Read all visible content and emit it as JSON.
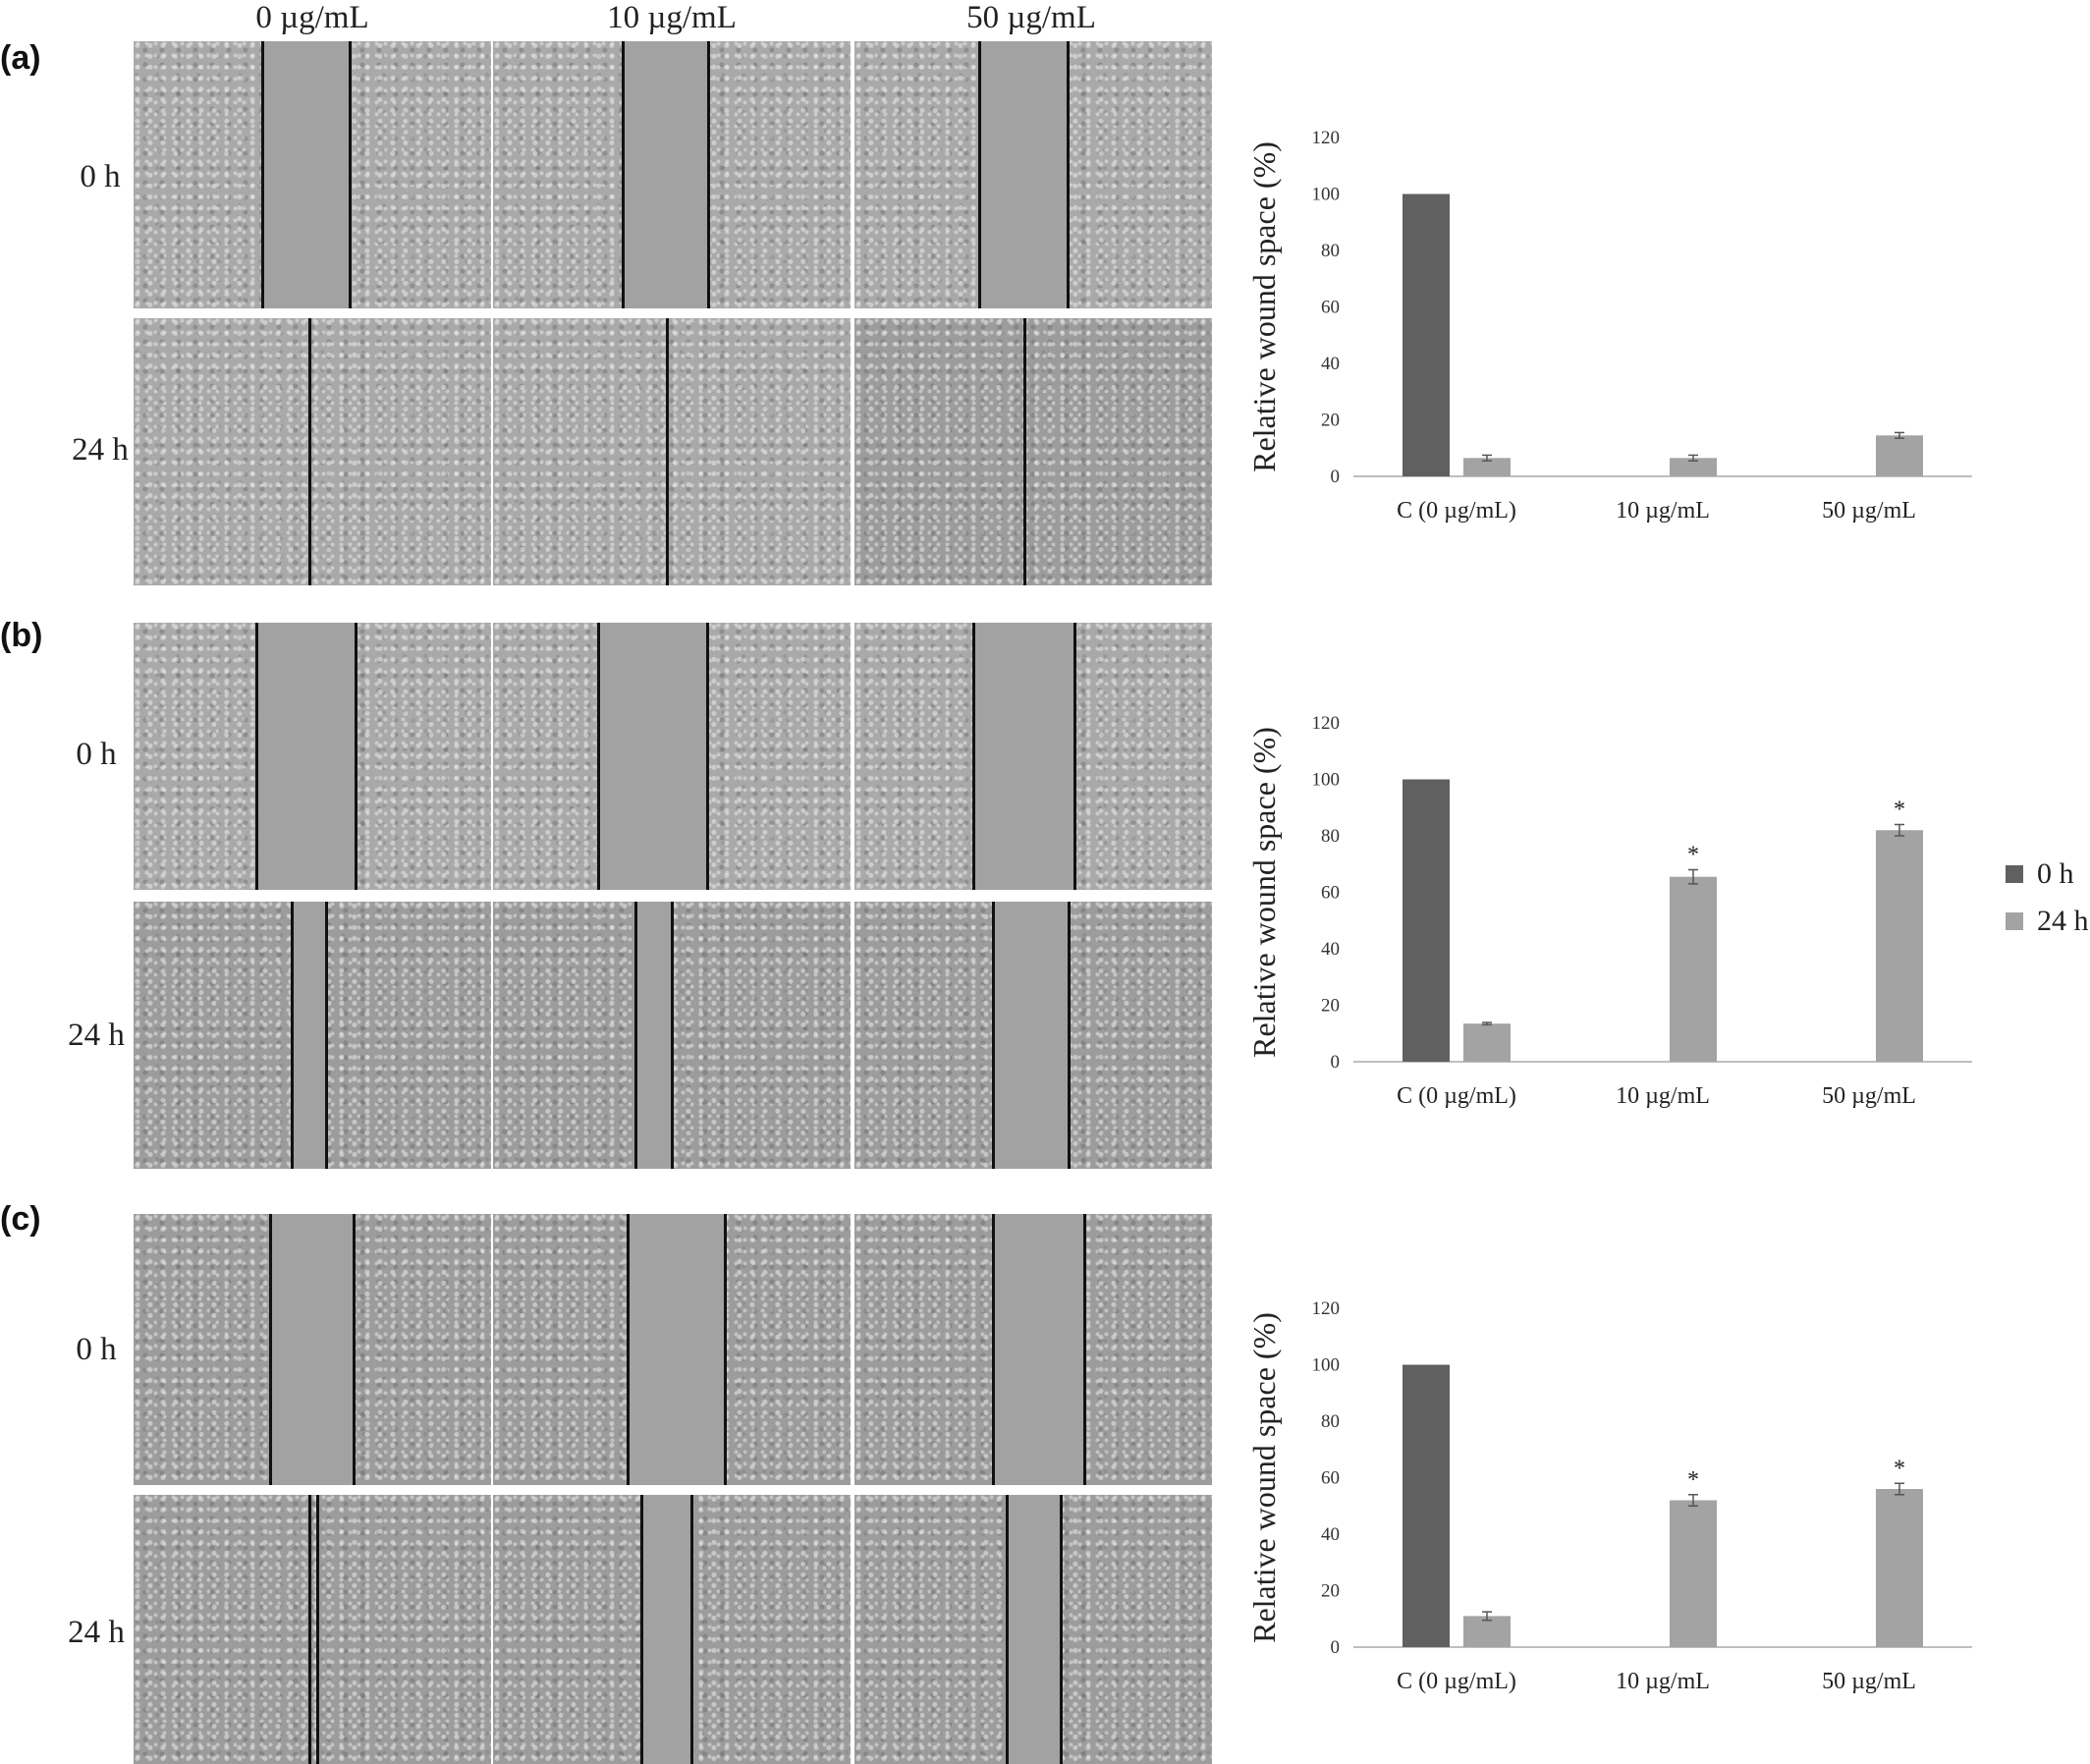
{
  "panels": [
    {
      "label": "(a)"
    },
    {
      "label": "(b)"
    },
    {
      "label": "(c)"
    }
  ],
  "column_headers": [
    "0 µg/mL",
    "10 µg/mL",
    "50 µg/mL"
  ],
  "row_headers": [
    "0 h",
    "24 h"
  ],
  "legend": [
    {
      "label": "0 h",
      "color": "#606060"
    },
    {
      "label": "24 h",
      "color": "#a3a3a3"
    }
  ],
  "chart_data": [
    {
      "type": "bar",
      "panel": "(a)",
      "categories": [
        "C (0 µg/mL)",
        "10 µg/mL",
        "50 µg/mL"
      ],
      "series": [
        {
          "name": "0 h",
          "values": [
            100,
            null,
            null
          ],
          "color": "#606060"
        },
        {
          "name": "24 h",
          "values": [
            6.5,
            6.5,
            14.5
          ],
          "errors": [
            1,
            1,
            1
          ],
          "color": "#a3a3a3"
        }
      ],
      "annotations": [
        null,
        null,
        null
      ],
      "ylabel": "Relative wound space (%)",
      "ylim": [
        0,
        120
      ],
      "yticks": [
        "0",
        "20",
        "40",
        "60",
        "80",
        "100",
        "120"
      ],
      "grid": false
    },
    {
      "type": "bar",
      "panel": "(b)",
      "categories": [
        "C (0 µg/mL)",
        "10 µg/mL",
        "50 µg/mL"
      ],
      "series": [
        {
          "name": "0 h",
          "values": [
            100,
            null,
            null
          ],
          "color": "#606060"
        },
        {
          "name": "24 h",
          "values": [
            13.5,
            65.5,
            82
          ],
          "errors": [
            0.4,
            2.5,
            2
          ],
          "color": "#a3a3a3"
        }
      ],
      "annotations": [
        null,
        "*",
        "*"
      ],
      "ylabel": "Relative wound space (%)",
      "ylim": [
        0,
        120
      ],
      "yticks": [
        "0",
        "20",
        "40",
        "60",
        "80",
        "100",
        "120"
      ],
      "grid": false
    },
    {
      "type": "bar",
      "panel": "(c)",
      "categories": [
        "C (0 µg/mL)",
        "10 µg/mL",
        "50 µg/mL"
      ],
      "series": [
        {
          "name": "0 h",
          "values": [
            100,
            null,
            null
          ],
          "color": "#606060"
        },
        {
          "name": "24 h",
          "values": [
            11,
            52,
            56
          ],
          "errors": [
            1.5,
            2,
            2
          ],
          "color": "#a3a3a3"
        }
      ],
      "annotations": [
        null,
        "*",
        "*"
      ],
      "ylabel": "Relative wound space (%)",
      "ylim": [
        0,
        120
      ],
      "yticks": [
        "0",
        "20",
        "40",
        "60",
        "80",
        "100",
        "120"
      ],
      "grid": false
    }
  ]
}
